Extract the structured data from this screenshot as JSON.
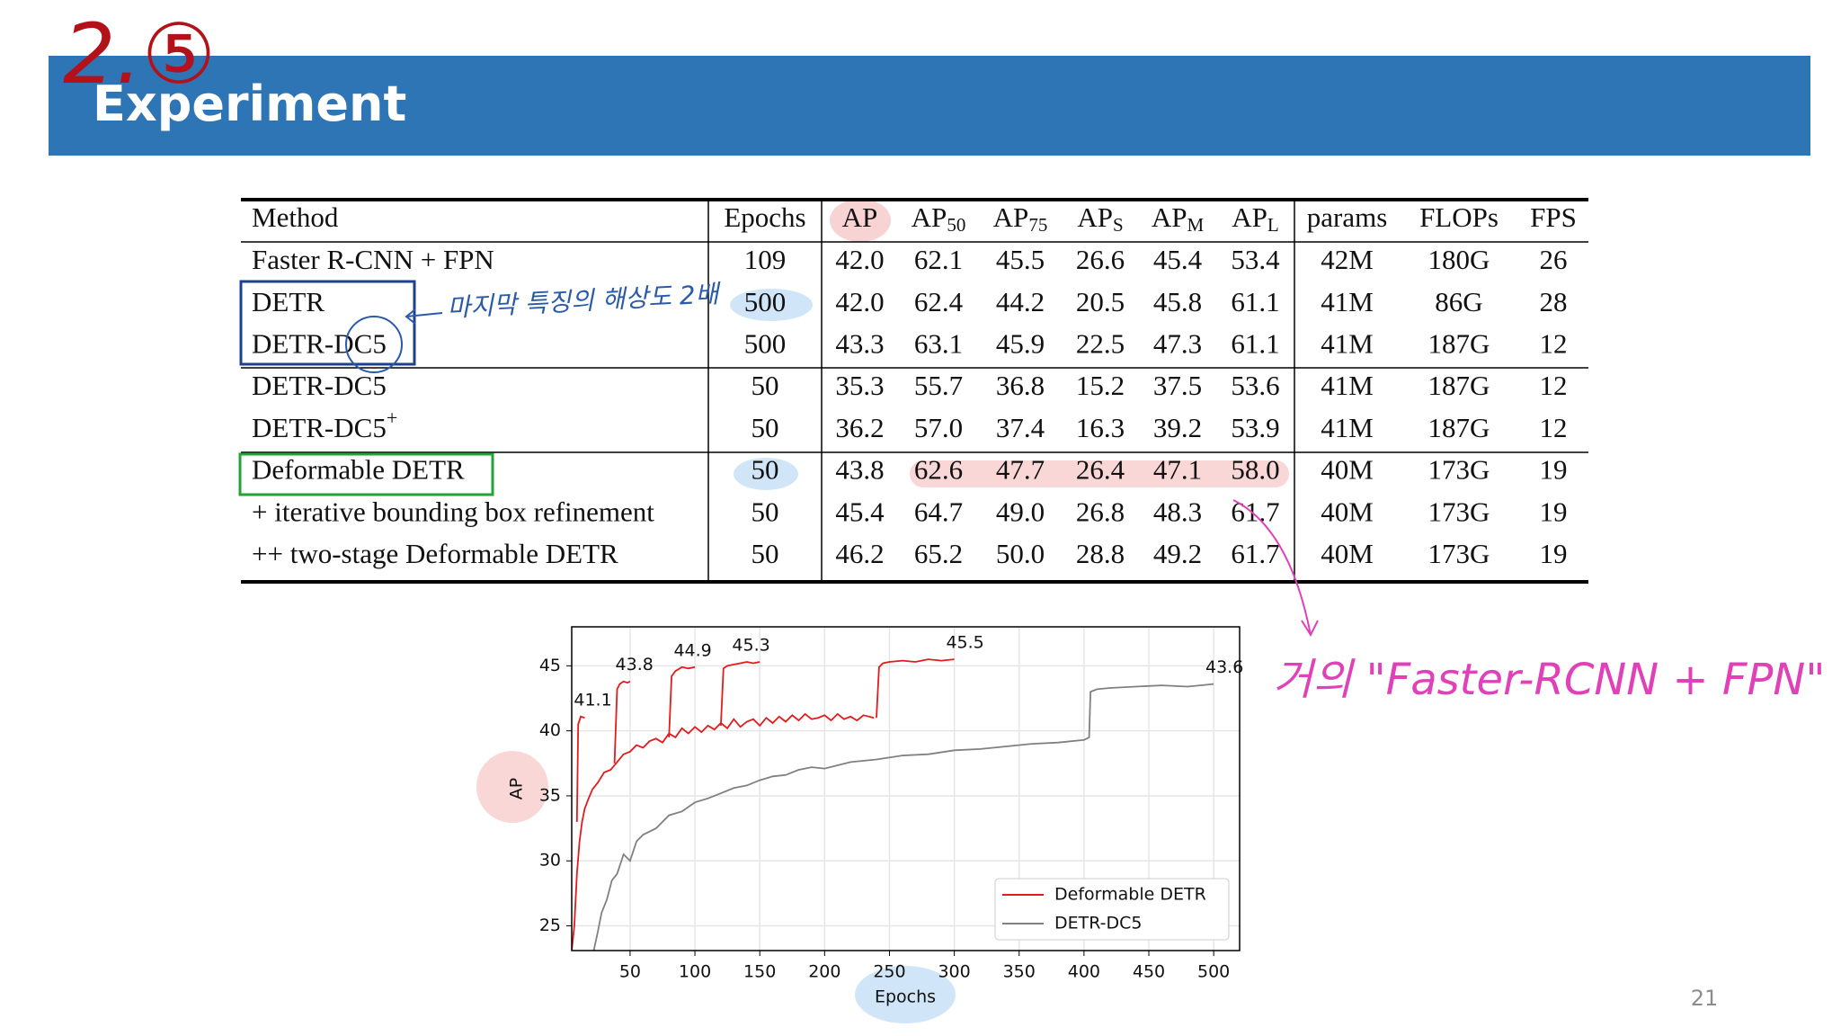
{
  "header": {
    "title": "Experiment",
    "annotation": "2.⑤"
  },
  "table": {
    "columns": [
      "Method",
      "Epochs",
      "AP",
      {
        "text": "AP",
        "sub": "50"
      },
      {
        "text": "AP",
        "sub": "75"
      },
      {
        "text": "AP",
        "sub": "S"
      },
      {
        "text": "AP",
        "sub": "M"
      },
      {
        "text": "AP",
        "sub": "L"
      },
      "params",
      "FLOPs",
      "FPS"
    ],
    "rows": [
      [
        "Faster R-CNN + FPN",
        "109",
        "42.0",
        "62.1",
        "45.5",
        "26.6",
        "45.4",
        "53.4",
        "42M",
        "180G",
        "26"
      ],
      [
        "DETR",
        "500",
        "42.0",
        "62.4",
        "44.2",
        "20.5",
        "45.8",
        "61.1",
        "41M",
        "86G",
        "28"
      ],
      [
        "DETR-DC5",
        "500",
        "43.3",
        "63.1",
        "45.9",
        "22.5",
        "47.3",
        "61.1",
        "41M",
        "187G",
        "12"
      ],
      [
        "DETR-DC5",
        "50",
        "35.3",
        "55.7",
        "36.8",
        "15.2",
        "37.5",
        "53.6",
        "41M",
        "187G",
        "12"
      ],
      [
        {
          "text": "DETR-DC5",
          "sup": "+"
        },
        "50",
        "36.2",
        "57.0",
        "37.4",
        "16.3",
        "39.2",
        "53.9",
        "41M",
        "187G",
        "12"
      ],
      [
        "Deformable DETR",
        "50",
        "43.8",
        "62.6",
        "47.7",
        "26.4",
        "47.1",
        "58.0",
        "40M",
        "173G",
        "19"
      ],
      [
        "+ iterative bounding box refinement",
        "50",
        "45.4",
        "64.7",
        "49.0",
        "26.8",
        "48.3",
        "61.7",
        "40M",
        "173G",
        "19"
      ],
      [
        "++ two-stage Deformable DETR",
        "50",
        "46.2",
        "65.2",
        "50.0",
        "28.8",
        "49.2",
        "61.7",
        "40M",
        "173G",
        "19"
      ]
    ]
  },
  "annotations": {
    "table_note": "마지막 특징의 해상도 2배",
    "chart_note": "거의 \"Faster-RCNN + FPN\""
  },
  "chart_data": {
    "type": "line",
    "xlabel": "Epochs",
    "ylabel": "AP",
    "xlim": [
      5,
      520
    ],
    "ylim": [
      23.1,
      48
    ],
    "xticks": [
      50,
      100,
      150,
      200,
      250,
      300,
      350,
      400,
      450,
      500
    ],
    "yticks": [
      25,
      30,
      35,
      40,
      45
    ],
    "grid": true,
    "legend": "lower right",
    "series": [
      {
        "name": "Deformable DETR",
        "color": "#e41a1c",
        "x": [
          5,
          7,
          9,
          11,
          13,
          15,
          18,
          21,
          25,
          30,
          35,
          40,
          45,
          50,
          55,
          60,
          65,
          70,
          75,
          80,
          85,
          90,
          95,
          100,
          105,
          110,
          115,
          120,
          125,
          130,
          135,
          140,
          145,
          150,
          155,
          160,
          165,
          170,
          175,
          180,
          185,
          190,
          195,
          200,
          205,
          210,
          215,
          220,
          225,
          230,
          238,
          null,
          9,
          10,
          12,
          15,
          null,
          38,
          40,
          42,
          45,
          48,
          50,
          null,
          80,
          82,
          85,
          90,
          95,
          100,
          null,
          120,
          122,
          125,
          130,
          135,
          140,
          145,
          150,
          null,
          240,
          242,
          245,
          250,
          260,
          270,
          280,
          290,
          300
        ],
        "values": [
          23.1,
          25,
          29,
          31.5,
          33,
          34,
          34.8,
          35.5,
          36,
          36.8,
          37,
          37.6,
          38.2,
          38.4,
          38.9,
          38.7,
          39.2,
          39.4,
          39.1,
          39.8,
          39.5,
          40.2,
          39.8,
          40.3,
          39.9,
          40.4,
          40.1,
          40.6,
          40.2,
          40.9,
          40.3,
          40.7,
          40.9,
          40.4,
          41,
          40.6,
          41.1,
          40.7,
          41.2,
          40.8,
          41.3,
          40.9,
          41,
          41.2,
          40.8,
          41.3,
          40.9,
          41.1,
          40.8,
          41.2,
          41,
          null,
          33,
          40.5,
          41.1,
          41,
          null,
          37.5,
          43.2,
          43.6,
          43.8,
          43.7,
          43.8,
          null,
          39.5,
          44.2,
          44.6,
          44.9,
          44.8,
          44.9,
          null,
          40.4,
          44.8,
          45.0,
          45.1,
          45.2,
          45.3,
          45.2,
          45.3,
          null,
          41,
          44.9,
          45.2,
          45.3,
          45.4,
          45.3,
          45.5,
          45.4,
          45.5
        ]
      },
      {
        "name": "DETR-DC5",
        "color": "#808080",
        "x": [
          22,
          25,
          28,
          32,
          36,
          40,
          45,
          50,
          55,
          60,
          70,
          80,
          90,
          100,
          110,
          120,
          130,
          140,
          150,
          160,
          170,
          180,
          190,
          200,
          220,
          240,
          260,
          280,
          300,
          320,
          340,
          360,
          380,
          400,
          404,
          405,
          410,
          420,
          440,
          460,
          480,
          500
        ],
        "values": [
          23.1,
          24.5,
          26,
          27,
          28.5,
          29,
          30.5,
          30,
          31.5,
          32,
          32.5,
          33.5,
          33.8,
          34.5,
          34.8,
          35.2,
          35.6,
          35.8,
          36.2,
          36.5,
          36.6,
          37,
          37.2,
          37.1,
          37.6,
          37.8,
          38.1,
          38.2,
          38.5,
          38.6,
          38.8,
          39,
          39.1,
          39.3,
          39.5,
          43,
          43.2,
          43.3,
          43.4,
          43.5,
          43.4,
          43.6
        ]
      }
    ],
    "peak_labels": [
      {
        "x": 13,
        "value": 41.1
      },
      {
        "x": 45,
        "value": 43.8
      },
      {
        "x": 90,
        "value": 44.9
      },
      {
        "x": 135,
        "value": 45.3
      },
      {
        "x": 300,
        "value": 45.5
      },
      {
        "x": 500,
        "value": 43.6
      }
    ]
  },
  "page_number": "21"
}
